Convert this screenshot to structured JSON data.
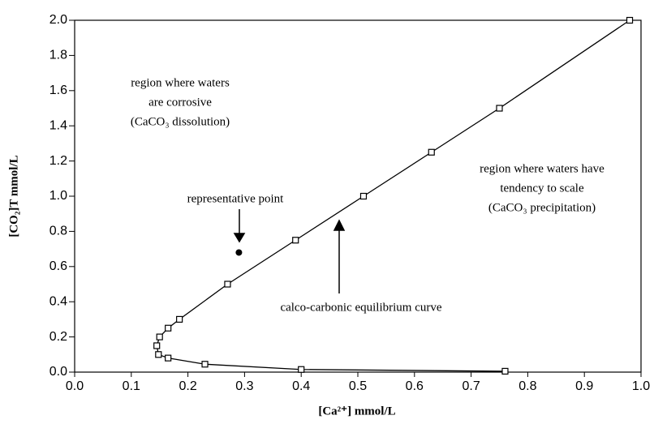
{
  "chart_data": {
    "type": "line",
    "xlabel": "[Ca²⁺]  mmol/L",
    "ylabel": "[CO₂]T  mmol/L",
    "xlim": [
      0,
      1
    ],
    "ylim": [
      0,
      2
    ],
    "xticks": [
      {
        "value": 0,
        "label": "0.0"
      },
      0.1,
      0.2,
      0.3,
      0.4,
      0.5,
      0.6,
      0.7,
      0.8,
      0.9,
      {
        "value": 1,
        "label": "1.0"
      }
    ],
    "yticks": [
      {
        "value": 0,
        "label": "0.0"
      },
      0.2,
      0.4,
      0.6,
      0.8,
      {
        "value": 1,
        "label": "1.0"
      },
      1.2,
      1.4,
      1.6,
      1.8,
      {
        "value": 2,
        "label": "2.0"
      }
    ],
    "series": [
      {
        "color": "#000000",
        "marker": "square",
        "line": true,
        "x": [
          0.98,
          0.75,
          0.63,
          0.51,
          0.39,
          0.27,
          0.185,
          0.165,
          0.15,
          0.145,
          0.148,
          0.165,
          0.23,
          0.4,
          0.76
        ],
        "values": [
          2.0,
          1.5,
          1.25,
          1.0,
          0.75,
          0.5,
          0.3,
          0.25,
          0.2,
          0.15,
          0.1,
          0.08,
          0.045,
          0.015,
          0.005
        ]
      },
      {
        "color": "#000000",
        "marker": "circle",
        "line": false,
        "x": [
          0.29
        ],
        "values": [
          0.68
        ]
      }
    ],
    "annotations": [
      {
        "lines": [
          "region where waters",
          "are corrosive",
          "(CaCO₃ dissolution)"
        ]
      },
      {
        "lines": [
          "region where waters have",
          "tendency to scale",
          "(CaCO₃ precipitation)"
        ]
      },
      {
        "lines": [
          "representative point"
        ]
      },
      {
        "lines": [
          "calco-carbonic equilibrium curve"
        ]
      }
    ]
  }
}
